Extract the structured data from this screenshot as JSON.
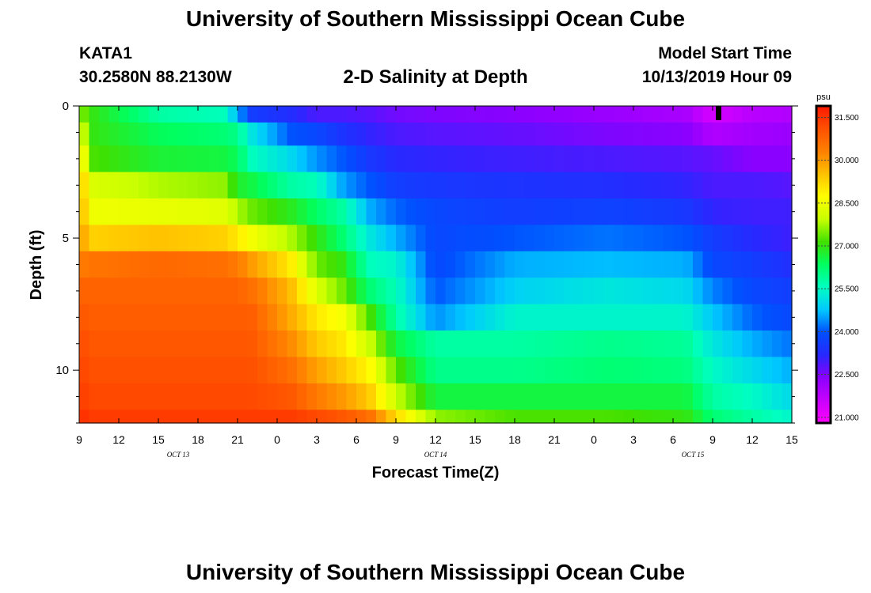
{
  "header": {
    "title": "University of Southern Mississippi Ocean Cube",
    "station": "KATA1",
    "coords": "30.2580N 88.2130W",
    "subtitle": "2-D Salinity at Depth",
    "model_label": "Model Start Time",
    "model_time": "10/13/2019 Hour 09"
  },
  "footer": {
    "title": "University of Southern Mississippi Ocean Cube"
  },
  "chart_data": {
    "type": "heatmap",
    "title": "2-D Salinity at Depth",
    "xlabel": "Forecast Time(Z)",
    "ylabel": "Depth (ft)",
    "x_tick_labels": [
      "9",
      "12",
      "15",
      "18",
      "21",
      "0",
      "3",
      "6",
      "9",
      "12",
      "15",
      "18",
      "21",
      "0",
      "3",
      "6",
      "9",
      "12",
      "15"
    ],
    "date_labels": [
      "OCT 13",
      "OCT 14",
      "OCT 15"
    ],
    "x_range_hours": [
      0,
      54
    ],
    "y_ticks": [
      0,
      5,
      10
    ],
    "y_range": [
      0,
      12
    ],
    "y_inverted": true,
    "colorbar": {
      "unit": "psu",
      "ticks": [
        "31.500",
        "30.000",
        "28.500",
        "27.000",
        "25.500",
        "24.000",
        "22.500",
        "21.000"
      ],
      "range": [
        20.8,
        31.9
      ],
      "colors": [
        "#ff00ff",
        "#c800ff",
        "#8c00ff",
        "#2828ff",
        "#0050ff",
        "#00c8ff",
        "#00ffc0",
        "#00ff60",
        "#40e000",
        "#c8ff00",
        "#ffff00",
        "#ffc000",
        "#ff8000",
        "#ff5000",
        "#ff1800"
      ]
    },
    "depth_levels": [
      0.25,
      1,
      2,
      3,
      4,
      5,
      6,
      7,
      8,
      9,
      10,
      11,
      12
    ],
    "profiles": [
      {
        "hour": 0,
        "values": [
          27.6,
          28.4,
          29.2,
          29.6,
          29.8,
          30.0,
          30.4,
          30.8,
          31.0,
          31.2,
          31.3,
          31.4,
          31.6
        ]
      },
      {
        "hour": 1,
        "values": [
          27.0,
          27.0,
          27.2,
          28.2,
          28.5,
          29.3,
          30.5,
          30.8,
          30.9,
          31.0,
          31.1,
          31.2,
          31.4
        ]
      },
      {
        "hour": 6,
        "values": [
          25.8,
          26.4,
          26.7,
          27.8,
          28.4,
          29.5,
          30.7,
          30.8,
          30.9,
          31.0,
          31.1,
          31.2,
          31.4
        ]
      },
      {
        "hour": 11,
        "values": [
          25.6,
          26.2,
          26.6,
          27.6,
          28.3,
          29.3,
          30.6,
          30.8,
          30.9,
          31.0,
          31.1,
          31.2,
          31.4
        ]
      },
      {
        "hour": 12,
        "values": [
          24.6,
          26.0,
          26.4,
          26.8,
          27.8,
          29.0,
          30.4,
          30.8,
          30.9,
          31.0,
          31.1,
          31.2,
          31.4
        ]
      },
      {
        "hour": 13,
        "values": [
          23.6,
          25.2,
          25.6,
          26.6,
          27.4,
          28.6,
          30.0,
          30.6,
          30.9,
          31.0,
          31.1,
          31.2,
          31.4
        ]
      },
      {
        "hour": 16,
        "values": [
          23.3,
          24.0,
          25.0,
          25.8,
          26.9,
          27.8,
          29.0,
          29.6,
          29.8,
          30.2,
          30.6,
          31.0,
          31.4
        ]
      },
      {
        "hour": 18,
        "values": [
          22.9,
          23.8,
          24.4,
          25.6,
          26.3,
          27.0,
          27.4,
          28.2,
          29.0,
          29.4,
          29.9,
          30.4,
          31.2
        ]
      },
      {
        "hour": 20,
        "values": [
          22.9,
          23.4,
          24.0,
          24.5,
          25.8,
          26.2,
          27.0,
          27.4,
          28.6,
          29.0,
          29.4,
          30.0,
          31.0
        ]
      },
      {
        "hour": 22,
        "values": [
          22.8,
          23.1,
          23.5,
          24.0,
          24.6,
          25.2,
          25.6,
          26.2,
          27.2,
          28.0,
          28.8,
          29.4,
          30.6
        ]
      },
      {
        "hour": 24,
        "values": [
          22.6,
          22.9,
          23.2,
          23.6,
          24.1,
          24.6,
          25.4,
          25.6,
          25.8,
          26.6,
          27.3,
          28.0,
          29.2
        ]
      },
      {
        "hour": 27,
        "values": [
          22.5,
          22.8,
          23.1,
          23.5,
          23.8,
          23.8,
          23.8,
          24.0,
          24.4,
          25.8,
          26.0,
          26.6,
          27.6
        ]
      },
      {
        "hour": 33,
        "values": [
          22.4,
          22.7,
          23.0,
          23.4,
          23.6,
          24.0,
          24.6,
          24.9,
          25.4,
          25.8,
          26.0,
          26.6,
          27.2
        ]
      },
      {
        "hour": 40,
        "values": [
          22.2,
          22.5,
          22.9,
          23.3,
          23.7,
          24.2,
          24.7,
          25.2,
          25.4,
          26.0,
          26.2,
          26.6,
          27.2
        ]
      },
      {
        "hour": 46,
        "values": [
          22.0,
          22.4,
          22.8,
          23.1,
          23.5,
          24.0,
          24.6,
          25.0,
          25.4,
          25.9,
          26.1,
          26.6,
          27.0
        ]
      },
      {
        "hour": 48,
        "values": [
          21.4,
          21.9,
          22.7,
          22.9,
          23.1,
          23.6,
          23.8,
          24.3,
          24.8,
          25.2,
          25.5,
          25.8,
          26.2
        ]
      },
      {
        "hour": 51,
        "values": [
          21.8,
          22.1,
          22.4,
          22.9,
          23.0,
          23.2,
          23.6,
          23.8,
          24.1,
          24.6,
          25.0,
          25.5,
          25.8
        ]
      },
      {
        "hour": 54,
        "values": [
          21.9,
          22.2,
          22.4,
          22.8,
          23.0,
          23.0,
          23.3,
          23.6,
          23.8,
          24.2,
          24.6,
          25.0,
          25.4
        ]
      }
    ]
  }
}
